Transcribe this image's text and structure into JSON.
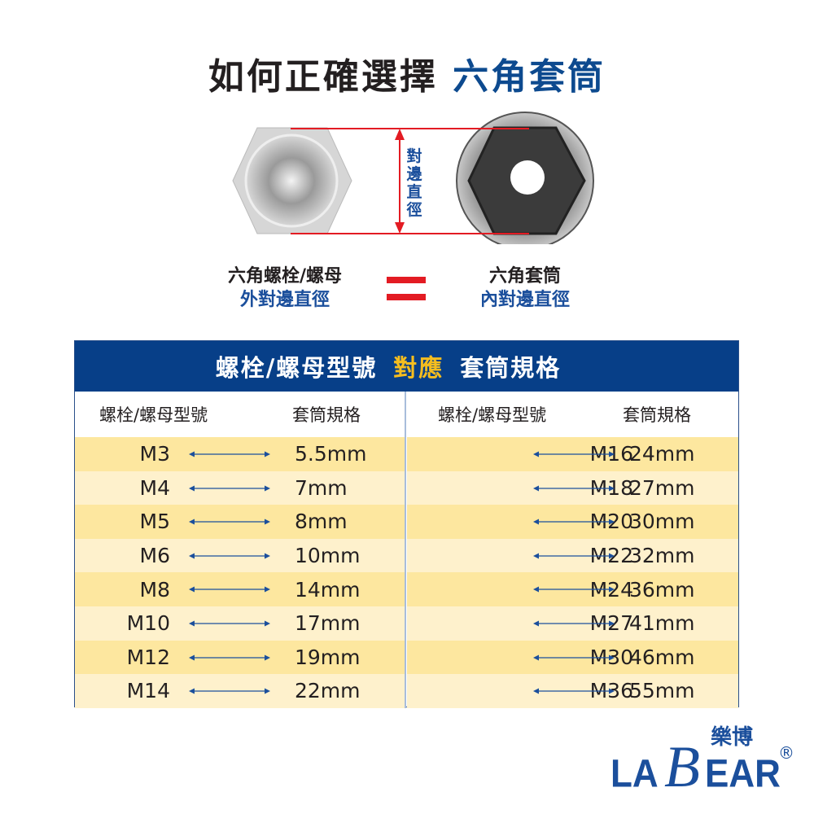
{
  "title": {
    "main": "如何正確選擇",
    "highlight": "六角套筒"
  },
  "diagram": {
    "measure_label": [
      "對",
      "邊",
      "直",
      "徑"
    ],
    "left_label": {
      "line1": "六角螺栓/螺母",
      "line2": "外對邊直徑"
    },
    "right_label": {
      "line1": "六角套筒",
      "line2": "內對邊直徑"
    }
  },
  "table": {
    "header": {
      "part1": "螺栓/螺母型號",
      "part2": "對應",
      "part3": "套筒規格"
    },
    "col_model": "螺栓/螺母型號",
    "col_socket": "套筒規格",
    "left_rows": [
      [
        "M3",
        "5.5mm"
      ],
      [
        "M4",
        "7mm"
      ],
      [
        "M5",
        "8mm"
      ],
      [
        "M6",
        "10mm"
      ],
      [
        "M8",
        "14mm"
      ],
      [
        "M10",
        "17mm"
      ],
      [
        "M12",
        "19mm"
      ],
      [
        "M14",
        "22mm"
      ]
    ],
    "right_rows": [
      [
        "M16",
        "24mm"
      ],
      [
        "M18",
        "27mm"
      ],
      [
        "M20",
        "30mm"
      ],
      [
        "M22",
        "32mm"
      ],
      [
        "M24",
        "36mm"
      ],
      [
        "M27",
        "41mm"
      ],
      [
        "M30",
        "46mm"
      ],
      [
        "M36",
        "55mm"
      ]
    ]
  },
  "logo": {
    "text": "LaBear",
    "chinese": "樂博",
    "registered": "®"
  },
  "colors": {
    "brand_blue": "#073f88",
    "accent_yellow": "#f5bd1f",
    "red": "#e31b23",
    "row_dark": "#fde79f",
    "row_light": "#fef1cc"
  }
}
